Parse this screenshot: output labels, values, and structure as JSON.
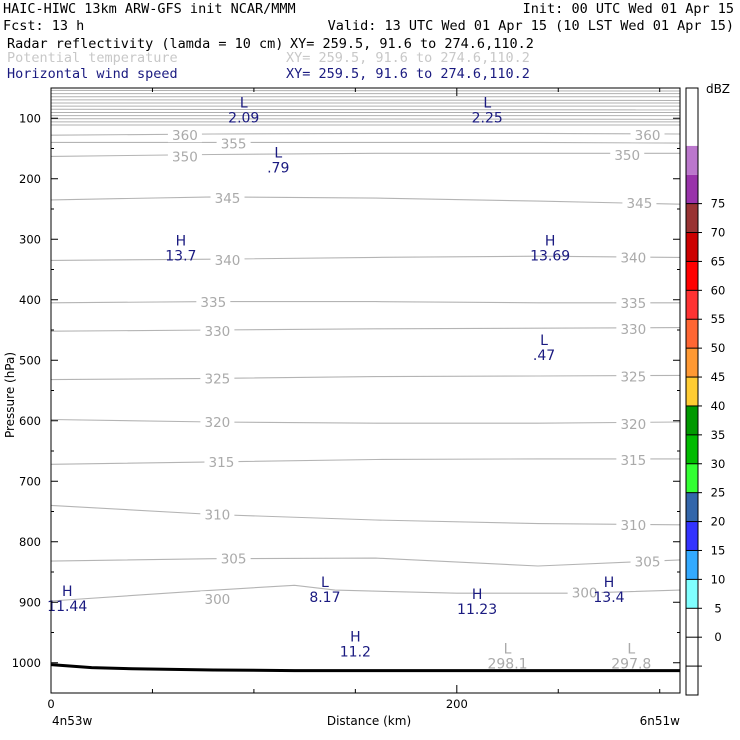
{
  "header": {
    "title_left": "HAIC-HIWC 13km ARW-GFS init   NCAR/MMM",
    "init": "Init: 00 UTC Wed 01 Apr 15",
    "fcst": "Fcst:   13 h",
    "valid": "Valid: 13 UTC Wed 01 Apr 15 (10 LST Wed 01 Apr 15)",
    "fields": [
      {
        "name": "Radar reflectivity (lamda = 10 cm)",
        "xy": "XY= 259.5, 91.6 to 274.6,110.2",
        "color": "#000000"
      },
      {
        "name": "Potential temperature",
        "xy": "XY= 259.5, 91.6 to 274.6,110.2",
        "color": "#c8c8c8"
      },
      {
        "name": "Horizontal wind speed",
        "xy": "XY= 259.5, 91.6 to 274.6,110.2",
        "color": "#1a1a80"
      }
    ]
  },
  "chart_data": {
    "type": "line",
    "xlabel": "Distance (km)",
    "ylabel": "Pressure (hPa)",
    "xlim": [
      0,
      310
    ],
    "ylim": [
      1050,
      50
    ],
    "x_ticks": [
      0,
      200
    ],
    "x_minor_ticks": [
      50,
      100,
      150,
      250,
      300
    ],
    "y_ticks": [
      100,
      200,
      300,
      400,
      500,
      600,
      700,
      800,
      900,
      1000
    ],
    "x_end_labels": {
      "left": "4n53w",
      "right": "6n51w"
    },
    "theta_contours": [
      {
        "label": "360",
        "points": [
          [
            0,
            128
          ],
          [
            80,
            126
          ],
          [
            160,
            125
          ],
          [
            240,
            125
          ],
          [
            310,
            126
          ]
        ],
        "labels_at": [
          [
            66,
            128
          ],
          [
            294,
            128
          ]
        ]
      },
      {
        "label": "355",
        "points": [
          [
            0,
            140
          ],
          [
            80,
            140
          ],
          [
            160,
            140
          ],
          [
            240,
            140
          ],
          [
            310,
            141
          ]
        ],
        "labels_at": [
          [
            90,
            142
          ]
        ]
      },
      {
        "label": "350",
        "points": [
          [
            0,
            163
          ],
          [
            80,
            160
          ],
          [
            160,
            158
          ],
          [
            240,
            158
          ],
          [
            310,
            158
          ]
        ],
        "labels_at": [
          [
            66,
            163
          ],
          [
            284,
            161
          ]
        ]
      },
      {
        "label": "345",
        "points": [
          [
            0,
            235
          ],
          [
            80,
            230
          ],
          [
            160,
            232
          ],
          [
            240,
            237
          ],
          [
            310,
            242
          ]
        ],
        "labels_at": [
          [
            87,
            232
          ],
          [
            290,
            240
          ]
        ]
      },
      {
        "label": "340",
        "points": [
          [
            0,
            335
          ],
          [
            80,
            333
          ],
          [
            160,
            330
          ],
          [
            240,
            328
          ],
          [
            310,
            330
          ]
        ],
        "labels_at": [
          [
            87,
            334
          ],
          [
            287,
            330
          ]
        ]
      },
      {
        "label": "335",
        "points": [
          [
            0,
            405
          ],
          [
            80,
            403
          ],
          [
            160,
            403
          ],
          [
            240,
            405
          ],
          [
            310,
            405
          ]
        ],
        "labels_at": [
          [
            80,
            404
          ],
          [
            287,
            405
          ]
        ]
      },
      {
        "label": "330",
        "points": [
          [
            0,
            452
          ],
          [
            80,
            450
          ],
          [
            160,
            448
          ],
          [
            240,
            447
          ],
          [
            310,
            446
          ]
        ],
        "labels_at": [
          [
            82,
            452
          ],
          [
            287,
            448
          ]
        ]
      },
      {
        "label": "325",
        "points": [
          [
            0,
            532
          ],
          [
            80,
            530
          ],
          [
            160,
            527
          ],
          [
            240,
            526
          ],
          [
            310,
            525
          ]
        ],
        "labels_at": [
          [
            82,
            530
          ],
          [
            287,
            527
          ]
        ]
      },
      {
        "label": "320",
        "points": [
          [
            0,
            598
          ],
          [
            80,
            602
          ],
          [
            160,
            604
          ],
          [
            240,
            604
          ],
          [
            310,
            602
          ]
        ],
        "labels_at": [
          [
            82,
            602
          ],
          [
            287,
            605
          ]
        ]
      },
      {
        "label": "315",
        "points": [
          [
            0,
            672
          ],
          [
            80,
            668
          ],
          [
            160,
            664
          ],
          [
            240,
            663
          ],
          [
            310,
            663
          ]
        ],
        "labels_at": [
          [
            84,
            668
          ],
          [
            287,
            665
          ]
        ]
      },
      {
        "label": "310",
        "points": [
          [
            0,
            740
          ],
          [
            80,
            755
          ],
          [
            160,
            764
          ],
          [
            240,
            770
          ],
          [
            310,
            772
          ]
        ],
        "labels_at": [
          [
            82,
            755
          ],
          [
            287,
            772
          ]
        ]
      },
      {
        "label": "305",
        "points": [
          [
            0,
            832
          ],
          [
            80,
            828
          ],
          [
            160,
            827
          ],
          [
            240,
            840
          ],
          [
            310,
            830
          ]
        ],
        "labels_at": [
          [
            90,
            828
          ],
          [
            294,
            833
          ]
        ]
      },
      {
        "label": "300",
        "points": [
          [
            0,
            898
          ],
          [
            70,
            882
          ],
          [
            120,
            872
          ],
          [
            140,
            880
          ],
          [
            200,
            885
          ],
          [
            260,
            885
          ],
          [
            310,
            880
          ]
        ],
        "labels_at": [
          [
            82,
            895
          ],
          [
            263,
            884
          ]
        ]
      }
    ],
    "wind_extrema": [
      {
        "type": "L",
        "value": "2.09",
        "x": 95,
        "p": 82
      },
      {
        "type": "L",
        "value": "2.25",
        "x": 215,
        "p": 82
      },
      {
        "type": "L",
        "value": ".79",
        "x": 112,
        "p": 165
      },
      {
        "type": "H",
        "value": "13.7",
        "x": 64,
        "p": 310
      },
      {
        "type": "H",
        "value": "13.69",
        "x": 246,
        "p": 310
      },
      {
        "type": "L",
        "value": ".47",
        "x": 243,
        "p": 475
      },
      {
        "type": "H",
        "value": "11.44",
        "x": 8,
        "p": 890
      },
      {
        "type": "L",
        "value": "8.17",
        "x": 135,
        "p": 875
      },
      {
        "type": "H",
        "value": "11.23",
        "x": 210,
        "p": 895
      },
      {
        "type": "H",
        "value": "13.4",
        "x": 275,
        "p": 875
      },
      {
        "type": "H",
        "value": "11.2",
        "x": 150,
        "p": 965
      }
    ],
    "theta_extrema": [
      {
        "type": "L",
        "value": "298.1",
        "x": 225,
        "p": 985
      },
      {
        "type": "L",
        "value": "297.8",
        "x": 286,
        "p": 985
      }
    ],
    "terrain": [
      [
        0,
        1003
      ],
      [
        20,
        1008
      ],
      [
        40,
        1010
      ],
      [
        80,
        1012
      ],
      [
        120,
        1013
      ],
      [
        310,
        1013
      ]
    ]
  },
  "colorbar": {
    "unit": "dBZ",
    "levels": [
      "-5",
      "0",
      "5",
      "10",
      "15",
      "20",
      "25",
      "30",
      "35",
      "40",
      "45",
      "50",
      "55",
      "60",
      "65",
      "70",
      "75"
    ],
    "colors": [
      "#ffffff",
      "#ffffff",
      "#ffffff",
      "#80ffff",
      "#33aaff",
      "#3333ff",
      "#3366aa",
      "#33ff33",
      "#00bb00",
      "#009900",
      "#ffcc33",
      "#ff9933",
      "#ff6633",
      "#ff3333",
      "#ff0000",
      "#cc0000",
      "#993333",
      "#9933aa",
      "#bb77cc",
      "#ffffff",
      "#ffffff"
    ]
  }
}
